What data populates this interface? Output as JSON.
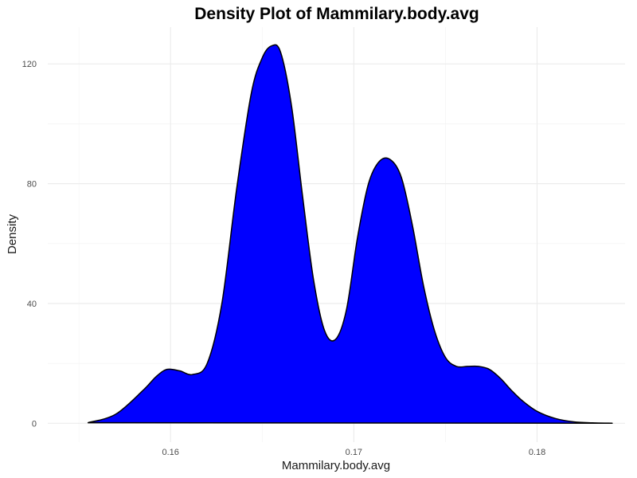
{
  "chart_data": {
    "type": "area",
    "title": "Density Plot of Mammilary.body.avg",
    "xlabel": "Mammilary.body.avg",
    "ylabel": "Density",
    "xlim": [
      0.1533,
      0.1848
    ],
    "ylim": [
      -6.3,
      132.3
    ],
    "x_ticks": [
      0.16,
      0.17,
      0.18
    ],
    "x_tick_labels": [
      "0.16",
      "0.17",
      "0.18"
    ],
    "x_minor_ticks": [
      0.155,
      0.165,
      0.175
    ],
    "y_ticks": [
      0,
      40,
      80,
      120
    ],
    "y_tick_labels": [
      "0",
      "40",
      "80",
      "120"
    ],
    "y_minor_ticks": [
      20,
      60,
      100
    ],
    "grid": true,
    "legend": "none",
    "fill_color": "#0000ff",
    "line_color": "#000000",
    "series": [
      {
        "x": [
          0.1555,
          0.157,
          0.1585,
          0.1592,
          0.1598,
          0.1605,
          0.1612,
          0.162,
          0.1628,
          0.1636,
          0.1644,
          0.165,
          0.1655,
          0.166,
          0.1666,
          0.1672,
          0.1678,
          0.1684,
          0.169,
          0.1696,
          0.1702,
          0.1708,
          0.1714,
          0.172,
          0.1726,
          0.1732,
          0.1738,
          0.1744,
          0.175,
          0.1756,
          0.1762,
          0.1768,
          0.1774,
          0.178,
          0.1786,
          0.1792,
          0.18,
          0.181,
          0.182,
          0.183,
          0.1841
        ],
        "y": [
          0.2,
          3,
          11,
          15.5,
          18,
          17.5,
          16.3,
          20,
          40,
          78,
          110,
          122,
          126,
          124,
          106,
          76,
          48,
          31,
          28,
          38,
          62,
          80,
          87.5,
          88,
          82,
          66,
          46,
          31,
          22,
          19,
          19,
          19,
          18,
          15,
          11,
          7.5,
          4,
          1.6,
          0.5,
          0.15,
          0.02
        ]
      }
    ]
  }
}
